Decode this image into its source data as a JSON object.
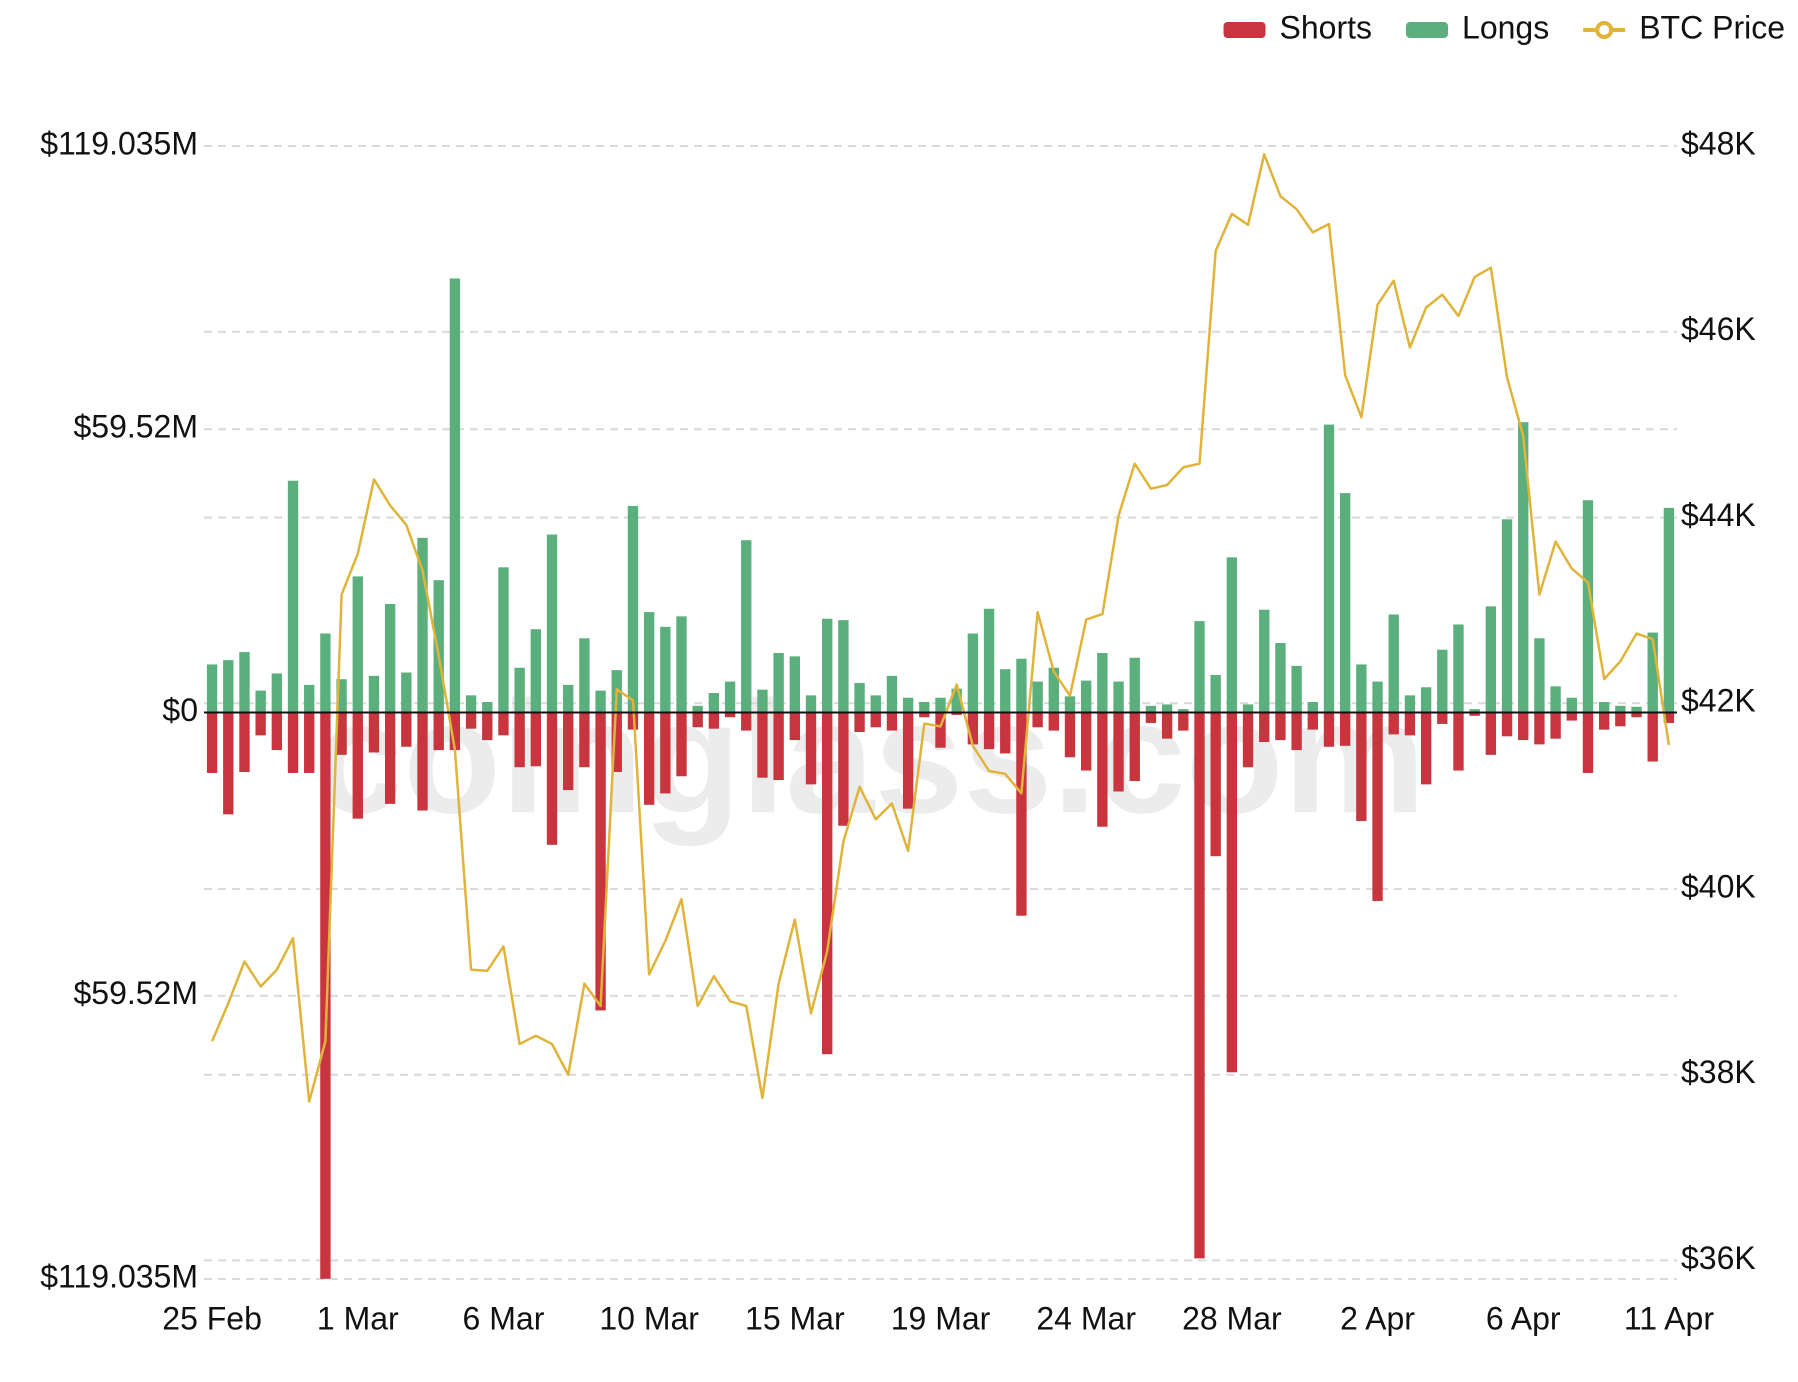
{
  "chart_data": {
    "type": "bar-line",
    "watermark": "coinglass.com",
    "legend": "top-right",
    "grid": true,
    "categories": [
      "25 Feb",
      null,
      null,
      null,
      null,
      null,
      null,
      null,
      null,
      "1 Mar",
      null,
      null,
      null,
      null,
      null,
      null,
      null,
      null,
      "6 Mar",
      null,
      null,
      null,
      null,
      null,
      null,
      null,
      null,
      "10 Mar",
      null,
      null,
      null,
      null,
      null,
      null,
      null,
      null,
      "15 Mar",
      null,
      null,
      null,
      null,
      null,
      null,
      null,
      null,
      "19 Mar",
      null,
      null,
      null,
      null,
      null,
      null,
      null,
      null,
      "24 Mar",
      null,
      null,
      null,
      null,
      null,
      null,
      null,
      null,
      "28 Mar",
      null,
      null,
      null,
      null,
      null,
      null,
      null,
      null,
      "2 Apr",
      null,
      null,
      null,
      null,
      null,
      null,
      null,
      null,
      "6 Apr",
      null,
      null,
      null,
      null,
      null,
      null,
      null,
      null,
      "11 Apr"
    ],
    "ylim": [
      -119.035,
      119.035
    ],
    "yticks": [
      {
        "value": 119.035,
        "label": "$119.035M"
      },
      {
        "value": 59.52,
        "label": "$59.52M"
      },
      {
        "value": 0,
        "label": "$0"
      },
      {
        "value": -59.52,
        "label": "$59.52M"
      },
      {
        "value": -119.035,
        "label": "$119.035M"
      }
    ],
    "y2lim": [
      35800,
      48000
    ],
    "y2ticks": [
      {
        "value": 36000,
        "label": "$36K"
      },
      {
        "value": 38000,
        "label": "$38K"
      },
      {
        "value": 40000,
        "label": "$40K"
      },
      {
        "value": 42000,
        "label": "$42K"
      },
      {
        "value": 44000,
        "label": "$44K"
      },
      {
        "value": 46000,
        "label": "$46K"
      },
      {
        "value": 48000,
        "label": "$48K"
      }
    ],
    "series": [
      {
        "name": "Shorts",
        "color": "#c8353f",
        "values": [
          -12.7,
          -21.4,
          -12.5,
          -4.8,
          -7.9,
          -12.7,
          -12.7,
          -119.0,
          -8.9,
          -22.3,
          -8.4,
          -19.2,
          -7.2,
          -20.6,
          -7.9,
          -7.9,
          -3.4,
          -5.8,
          -4.8,
          -11.5,
          -11.3,
          -27.8,
          -16.3,
          -11.5,
          -62.6,
          -12.5,
          -3.6,
          -19.4,
          -17.0,
          -13.4,
          -3.1,
          -3.4,
          -1.0,
          -3.8,
          -13.7,
          -14.2,
          -5.8,
          -15.1,
          -71.8,
          -23.8,
          -4.1,
          -3.1,
          -3.8,
          -20.2,
          -1.0,
          -7.4,
          -0.5,
          -6.7,
          -7.7,
          -8.6,
          -42.7,
          -3.1,
          -3.8,
          -9.4,
          -12.2,
          -24.0,
          -16.6,
          -14.4,
          -2.2,
          -5.5,
          -3.8,
          -114.7,
          -30.2,
          -75.6,
          -11.5,
          -6.2,
          -5.8,
          -7.9,
          -3.6,
          -7.2,
          -7.0,
          -22.8,
          -39.6,
          -4.6,
          -4.8,
          -15.1,
          -2.4,
          -12.2,
          -0.7,
          -8.9,
          -5.0,
          -5.8,
          -6.7,
          -5.5,
          -1.7,
          -12.7,
          -3.6,
          -2.9,
          -1.0,
          -10.3,
          -2.2
        ]
      },
      {
        "name": "Longs",
        "color": "#5aaf7d",
        "values": [
          10.1,
          11.0,
          12.7,
          4.6,
          8.2,
          48.7,
          5.8,
          16.6,
          7.0,
          28.6,
          7.7,
          22.8,
          8.4,
          36.7,
          27.8,
          91.2,
          3.6,
          2.2,
          30.5,
          9.4,
          17.5,
          37.4,
          5.8,
          15.6,
          4.6,
          8.9,
          43.4,
          21.1,
          18.0,
          20.2,
          1.4,
          4.1,
          6.5,
          36.2,
          4.8,
          12.5,
          11.8,
          3.6,
          19.7,
          19.4,
          6.2,
          3.6,
          7.7,
          3.1,
          2.2,
          3.1,
          5.0,
          16.6,
          21.8,
          9.1,
          11.3,
          6.5,
          9.4,
          3.4,
          6.7,
          12.5,
          6.5,
          11.5,
          1.4,
          1.7,
          0.7,
          19.2,
          7.9,
          32.6,
          1.7,
          21.6,
          14.6,
          9.8,
          2.2,
          60.5,
          46.1,
          10.1,
          6.5,
          20.6,
          3.6,
          5.3,
          13.2,
          18.5,
          0.7,
          22.3,
          40.6,
          61.0,
          15.6,
          5.5,
          3.1,
          44.6,
          2.2,
          1.4,
          1.2,
          16.8,
          43.0
        ]
      },
      {
        "name": "BTC Price",
        "color": "#e0b43a",
        "axis": "y2",
        "values": [
          38360,
          38770,
          39220,
          38950,
          39130,
          39470,
          37710,
          38360,
          43170,
          43610,
          44410,
          44130,
          43920,
          43430,
          42510,
          41500,
          39130,
          39120,
          39380,
          38330,
          38420,
          38330,
          38000,
          38980,
          38740,
          42150,
          42030,
          39080,
          39440,
          39890,
          38740,
          39060,
          38790,
          38740,
          37750,
          38980,
          39670,
          38660,
          39330,
          40510,
          41100,
          40750,
          40920,
          40410,
          41780,
          41750,
          42200,
          41540,
          41270,
          41240,
          41030,
          42980,
          42340,
          42080,
          42900,
          42960,
          44020,
          44580,
          44310,
          44350,
          44540,
          44580,
          46870,
          47270,
          47150,
          47910,
          47460,
          47320,
          47070,
          47160,
          45530,
          45080,
          46290,
          46550,
          45830,
          46260,
          46400,
          46170,
          46590,
          46690,
          45510,
          44880,
          43170,
          43740,
          43450,
          43300,
          42260,
          42450,
          42750,
          42690,
          41550
        ]
      }
    ]
  }
}
